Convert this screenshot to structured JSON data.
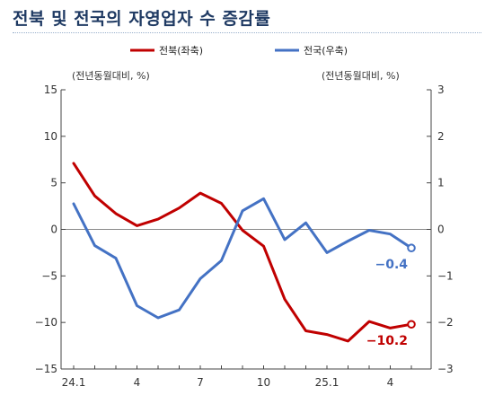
{
  "title": "전북 및 전국의 자영업자 수 증감률",
  "chart_data": {
    "type": "line",
    "title": "전북 및 전국의 자영업자 수 증감률",
    "left_unit": "(전년동월대비, %)",
    "right_unit": "(전년동월대비, %)",
    "x": [
      "24.1",
      "24.2",
      "24.3",
      "24.4",
      "24.5",
      "24.6",
      "24.7",
      "24.8",
      "24.9",
      "24.10",
      "24.11",
      "24.12",
      "25.1",
      "25.2",
      "25.3",
      "25.4",
      "25.5"
    ],
    "x_tick_labels": [
      "24.1",
      "",
      "",
      "4",
      "",
      "",
      "7",
      "",
      "",
      "10",
      "",
      "",
      "25.1",
      "",
      "",
      "4",
      ""
    ],
    "left_axis": {
      "ylim": [
        -15,
        15
      ],
      "ticks": [
        15,
        10,
        5,
        0,
        -5,
        -10,
        -15
      ],
      "tick_labels": [
        "15",
        "10",
        "5",
        "0",
        "−5",
        "−10",
        "−15"
      ]
    },
    "right_axis": {
      "ylim": [
        -3,
        3
      ],
      "ticks": [
        3,
        2,
        1,
        0,
        -1,
        -2,
        -3
      ],
      "tick_labels": [
        "3",
        "2",
        "1",
        "0",
        "−1",
        "−2",
        "−3"
      ]
    },
    "zero_line": true,
    "legend_position": "top",
    "series": [
      {
        "name": "전북(좌축)",
        "axis": "left",
        "color": "#c00000",
        "values": [
          7.1,
          3.6,
          1.7,
          0.4,
          1.1,
          2.3,
          3.9,
          2.8,
          -0.1,
          -1.8,
          -7.5,
          -10.9,
          -11.3,
          -12.0,
          -9.9,
          -10.6,
          -10.2
        ],
        "end_label": "−10.2"
      },
      {
        "name": "전국(우축)",
        "axis": "right",
        "color": "#4472c4",
        "values": [
          0.55,
          -0.35,
          -0.62,
          -1.64,
          -1.9,
          -1.73,
          -1.06,
          -0.67,
          0.4,
          0.66,
          -0.22,
          0.14,
          -0.5,
          -0.25,
          -0.02,
          -0.1,
          -0.4
        ],
        "end_label": "−0.4"
      }
    ]
  }
}
